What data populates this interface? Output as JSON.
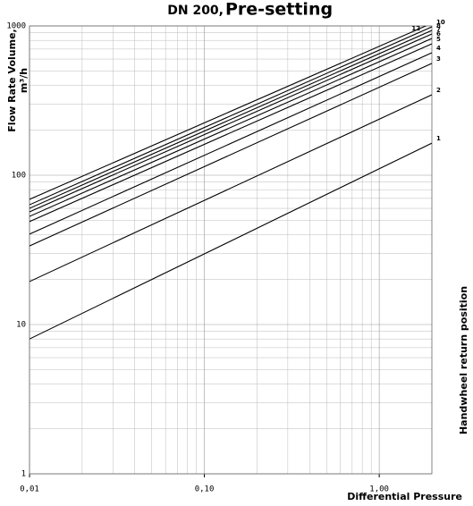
{
  "chart_data": {
    "type": "line",
    "title": "DN 200,",
    "subtitle": "Pre-setting",
    "y_label": [
      "Flow Rate Volume,",
      "m³/h"
    ],
    "x_label": "Differential Pressure",
    "right_label": "Handwheel return position",
    "log_x": true,
    "log_y": true,
    "grid": true,
    "minor_grid": true,
    "xlim": [
      0.01,
      2
    ],
    "ylim": [
      1,
      1000
    ],
    "xticks": [
      {
        "value": 0.01,
        "label": "0,01"
      },
      {
        "value": 0.1,
        "label": "0,10"
      },
      {
        "value": 1,
        "label": "1,00"
      }
    ],
    "yticks": [
      1,
      10,
      100,
      1000
    ],
    "x": [
      0.01,
      2
    ],
    "series": [
      {
        "name": "1",
        "color": "#000000",
        "values": [
          8.0,
          164
        ]
      },
      {
        "name": "2",
        "color": "#000000",
        "values": [
          19.4,
          346
        ]
      },
      {
        "name": "3",
        "color": "#000000",
        "values": [
          33.6,
          561
        ]
      },
      {
        "name": "4",
        "color": "#000000",
        "values": [
          40.3,
          661
        ]
      },
      {
        "name": "5",
        "color": "#000000",
        "values": [
          48.9,
          759
        ]
      },
      {
        "name": "6",
        "color": "#000000",
        "values": [
          53.0,
          824
        ]
      },
      {
        "name": "7",
        "color": "#000000",
        "values": [
          56.8,
          883
        ]
      },
      {
        "name": "8",
        "color": "#000000",
        "values": [
          60.0,
          933
        ]
      },
      {
        "name": "10",
        "color": "#000000",
        "values": [
          63.4,
          986
        ]
      },
      {
        "name": "12",
        "color": "#000000",
        "values": [
          68.9,
          1042
        ]
      }
    ]
  }
}
